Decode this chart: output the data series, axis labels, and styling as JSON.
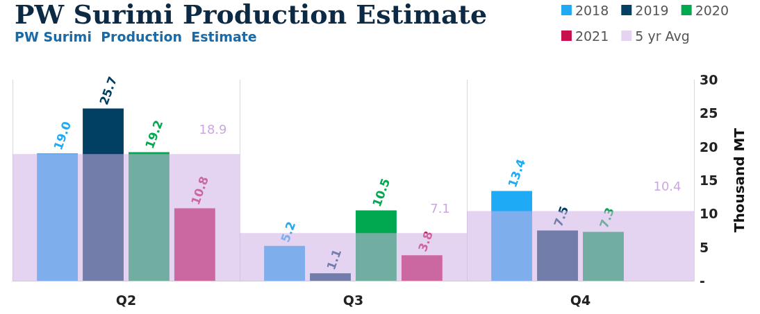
{
  "chart_data": {
    "type": "bar",
    "title": "PW Surimi Production Estimate",
    "subtitle": "PW Surimi  Production  Estimate",
    "ylabel": "Thousand MT",
    "categories": [
      "Q2",
      "Q3",
      "Q4"
    ],
    "series": [
      {
        "name": "2018",
        "color": "#1eaaf5",
        "values": [
          19.0,
          5.2,
          13.4
        ],
        "value_labels": [
          "19.0",
          "5.2",
          "13.4"
        ]
      },
      {
        "name": "2019",
        "color": "#013f63",
        "values": [
          25.7,
          1.1,
          7.5
        ],
        "value_labels": [
          "25.7",
          "1.1",
          "7.5"
        ]
      },
      {
        "name": "2020",
        "color": "#00a84f",
        "values": [
          19.2,
          10.5,
          7.3
        ],
        "value_labels": [
          "19.2",
          "10.5",
          "7.3"
        ]
      },
      {
        "name": "2021",
        "color": "#c8104f",
        "values": [
          10.8,
          3.8,
          null
        ],
        "value_labels": [
          "10.8",
          "3.8",
          null
        ]
      },
      {
        "name": "5 yr Avg",
        "type": "bar",
        "color": "#cfb0e6",
        "values": [
          18.9,
          7.1,
          10.4
        ],
        "value_labels": [
          "18.9",
          "7.1",
          "10.4"
        ]
      }
    ],
    "ylim": [
      0,
      30
    ],
    "yticks": [
      {
        "value": 0,
        "label": "-"
      },
      5,
      10,
      15,
      20,
      25,
      30
    ],
    "grid": "x",
    "legend": "top right"
  }
}
